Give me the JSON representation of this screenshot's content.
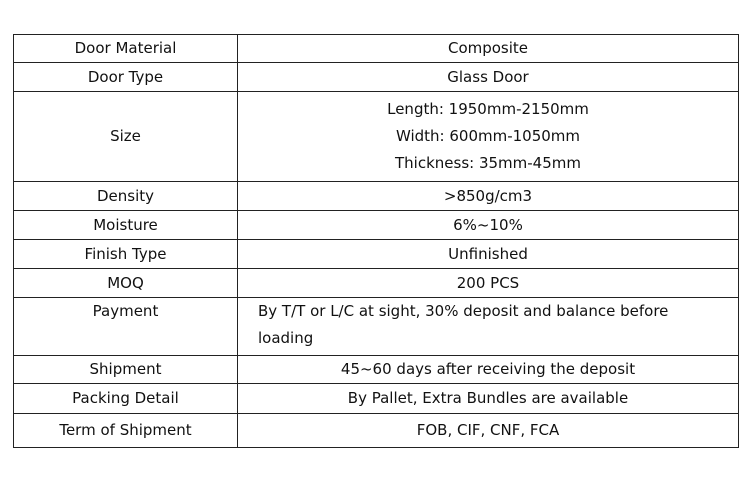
{
  "rows": [
    {
      "label": "Door Material",
      "value": "Composite"
    },
    {
      "label": "Door Type",
      "value": "Glass Door"
    },
    {
      "label": "Size",
      "lines": [
        "Length: 1950mm-2150mm",
        "Width: 600mm-1050mm",
        "Thickness: 35mm-45mm"
      ]
    },
    {
      "label": "Density",
      "value": ">850g/cm3"
    },
    {
      "label": "Moisture",
      "value": "6%~10%"
    },
    {
      "label": "Finish Type",
      "value": "Unfinished"
    },
    {
      "label": "MOQ",
      "value": "200 PCS"
    },
    {
      "label": "Payment",
      "value": "By T/T or L/C at sight, 30% deposit and balance before loading"
    },
    {
      "label": "Shipment",
      "value": "45~60 days after receiving the deposit"
    },
    {
      "label": "Packing Detail",
      "value": "By Pallet, Extra Bundles are available"
    },
    {
      "label": "Term of Shipment",
      "value": "FOB, CIF, CNF, FCA"
    }
  ]
}
